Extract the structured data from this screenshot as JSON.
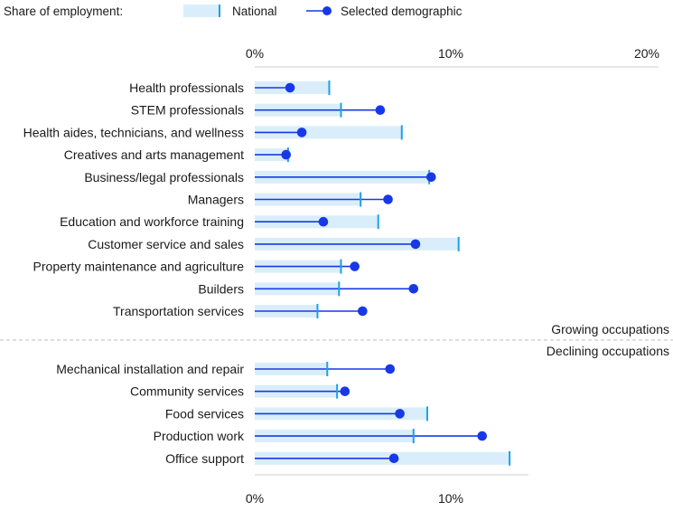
{
  "chart_data": {
    "type": "dot-bar",
    "legend": {
      "title": "Share of employment:",
      "national_label": "National",
      "demographic_label": "Selected demographic"
    },
    "x_ticks": [
      "0%",
      "10%",
      "20%"
    ],
    "xlim": [
      0,
      20
    ],
    "group_labels": {
      "growing": "Growing occupations",
      "declining": "Declining occupations"
    },
    "categories": [
      {
        "name": "Health professionals",
        "national": 3.8,
        "demographic": 1.8,
        "group": "growing"
      },
      {
        "name": "STEM professionals",
        "national": 4.4,
        "demographic": 6.4,
        "group": "growing"
      },
      {
        "name": "Health aides, technicians, and wellness",
        "national": 7.5,
        "demographic": 2.4,
        "group": "growing"
      },
      {
        "name": "Creatives and arts management",
        "national": 1.7,
        "demographic": 1.6,
        "group": "growing"
      },
      {
        "name": "Business/legal professionals",
        "national": 8.9,
        "demographic": 9.0,
        "group": "growing"
      },
      {
        "name": "Managers",
        "national": 5.4,
        "demographic": 6.8,
        "group": "growing"
      },
      {
        "name": "Education and workforce training",
        "national": 6.3,
        "demographic": 3.5,
        "group": "growing"
      },
      {
        "name": "Customer service and sales",
        "national": 10.4,
        "demographic": 8.2,
        "group": "growing"
      },
      {
        "name": "Property maintenance and agriculture",
        "national": 4.4,
        "demographic": 5.1,
        "group": "growing"
      },
      {
        "name": "Builders",
        "national": 4.3,
        "demographic": 8.1,
        "group": "growing"
      },
      {
        "name": "Transportation services",
        "national": 3.2,
        "demographic": 5.5,
        "group": "growing"
      },
      {
        "name": "Mechanical installation and repair",
        "national": 3.7,
        "demographic": 6.9,
        "group": "declining"
      },
      {
        "name": "Community services",
        "national": 4.2,
        "demographic": 4.6,
        "group": "declining"
      },
      {
        "name": "Food services",
        "national": 8.8,
        "demographic": 7.4,
        "group": "declining"
      },
      {
        "name": "Production work",
        "national": 8.1,
        "demographic": 11.6,
        "group": "declining"
      },
      {
        "name": "Office support",
        "national": 13.0,
        "demographic": 7.1,
        "group": "declining"
      }
    ],
    "colors": {
      "national_fill": "#d9eefa",
      "national_tick": "#1ea0e8",
      "demographic": "#1838e8",
      "grid": "#cfcfcf",
      "divider": "#bdbdbd"
    }
  }
}
